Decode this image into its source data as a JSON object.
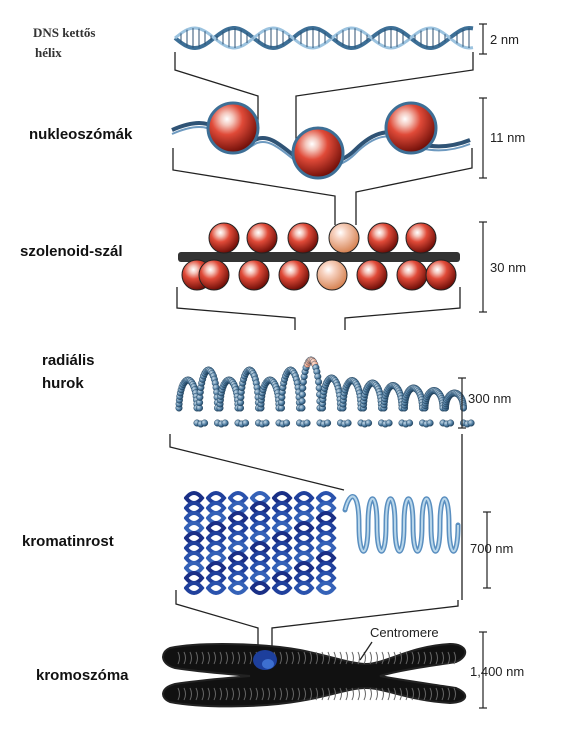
{
  "labels": {
    "dna_line1": "DNS kettős",
    "dna_line2": "hélix",
    "nucleosomes": "nukleoszómák",
    "solenoid": "szolenoid-szál",
    "radial_line1": "radiális",
    "radial_line2": "hurok",
    "chromatin": "kromatinrost",
    "chromosome": "kromoszóma"
  },
  "scales": {
    "dna": "2 nm",
    "nucleosome": "11 nm",
    "solenoid": "30 nm",
    "loop": "300 nm",
    "chromatin": "700 nm",
    "chromosome": "1,400 nm"
  },
  "centromere_label": "Centromere",
  "colors": {
    "dna_strand": "#4a7fa8",
    "nucleosome": "#d93a2b",
    "loop_beads": "#5a86a8",
    "chromatin_dark": "#1f3f95",
    "chromatin_light": "#6fa8d2",
    "chromosome": "#111111"
  }
}
